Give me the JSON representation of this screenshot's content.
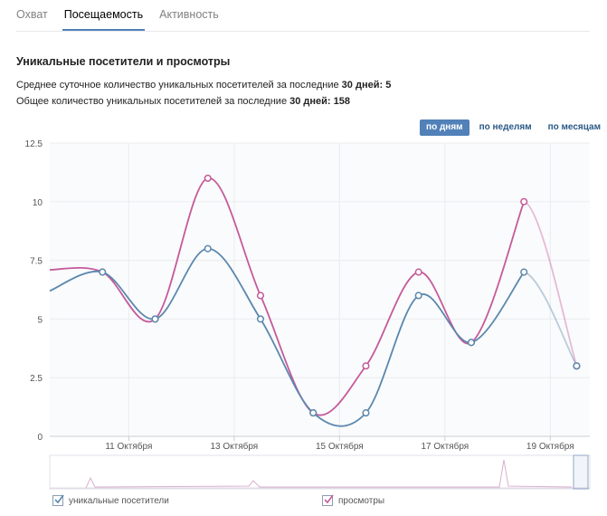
{
  "tabs": [
    {
      "label": "Охват"
    },
    {
      "label": "Посещаемость"
    },
    {
      "label": "Активность"
    }
  ],
  "section_title": "Уникальные посетители и просмотры",
  "stats": {
    "avg_prefix": "Среднее суточное количество уникальных посетителей за последние",
    "avg_days": "30 дней:",
    "avg_value": "5",
    "total_prefix": "Общее количество уникальных посетителей за последние",
    "total_days": "30 дней:",
    "total_value": "158"
  },
  "period_buttons": [
    {
      "label": "по дням",
      "active": true
    },
    {
      "label": "по неделям",
      "active": false
    },
    {
      "label": "по месяцам",
      "active": false
    }
  ],
  "colors": {
    "visitors": "#5b88ad",
    "views": "#c55a9a",
    "grid": "#e9ecf0",
    "axis_text": "#555555"
  },
  "chart_data": {
    "type": "line",
    "x": [
      9.5,
      10.5,
      11.5,
      12.5,
      13.5,
      14.5,
      15.5,
      16.5,
      17.5,
      18.5,
      19.5
    ],
    "x_unit": "Октября (day of month)",
    "x_ticks": [
      "11 Октября",
      "13 Октября",
      "15 Октября",
      "17 Октября",
      "19 Октября"
    ],
    "x_tick_values": [
      11,
      13,
      15,
      17,
      19
    ],
    "ylim": [
      0,
      12.5
    ],
    "y_ticks": [
      "0",
      "2.5",
      "5",
      "7.5",
      "10",
      "12.5"
    ],
    "y_tick_values": [
      0,
      2.5,
      5,
      7.5,
      10,
      12.5
    ],
    "grid": true,
    "legend_position": "bottom",
    "series": [
      {
        "name": "уникальные посетители",
        "values": [
          6.2,
          7,
          5,
          8,
          5,
          1,
          1,
          6,
          4,
          7,
          3
        ],
        "marked_from_index": 1
      },
      {
        "name": "просмотры",
        "values": [
          7.1,
          7,
          5,
          11,
          6,
          1,
          3,
          7,
          4,
          10,
          3
        ],
        "marked_from_index": 1
      }
    ]
  }
}
